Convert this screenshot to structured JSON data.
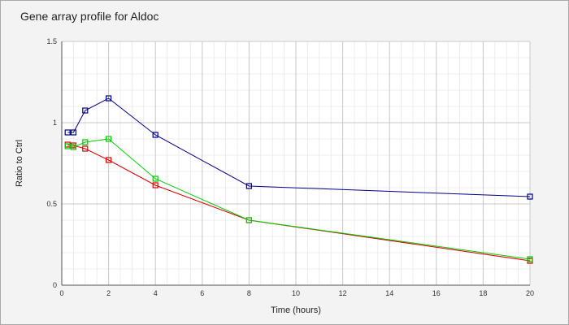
{
  "chart_data": {
    "type": "line",
    "title": "Gene array profile for Aldoc",
    "xlabel": "Time (hours)",
    "ylabel": "Ratio to Ctrl",
    "xlim": [
      0,
      20
    ],
    "ylim": [
      0,
      1.5
    ],
    "xticks": [
      0,
      2,
      4,
      6,
      8,
      10,
      12,
      14,
      16,
      18,
      20
    ],
    "yticks": [
      0,
      0.5,
      1,
      1.5
    ],
    "grid": true,
    "minor_grid": true,
    "legend": "none",
    "marker": "square",
    "series": [
      {
        "color": "#00008b",
        "x": [
          0.25,
          0.5,
          1,
          2,
          4,
          8,
          20
        ],
        "y": [
          0.94,
          0.94,
          1.075,
          1.15,
          0.925,
          0.61,
          0.545
        ]
      },
      {
        "color": "#dd0000",
        "x": [
          0.25,
          0.5,
          1,
          2,
          4,
          8,
          20
        ],
        "y": [
          0.865,
          0.86,
          0.84,
          0.77,
          0.615,
          0.4,
          0.15
        ]
      },
      {
        "color": "#00cc00",
        "x": [
          0.25,
          0.5,
          1,
          2,
          4,
          8,
          20
        ],
        "y": [
          0.855,
          0.85,
          0.88,
          0.9,
          0.655,
          0.4,
          0.16
        ]
      }
    ]
  }
}
